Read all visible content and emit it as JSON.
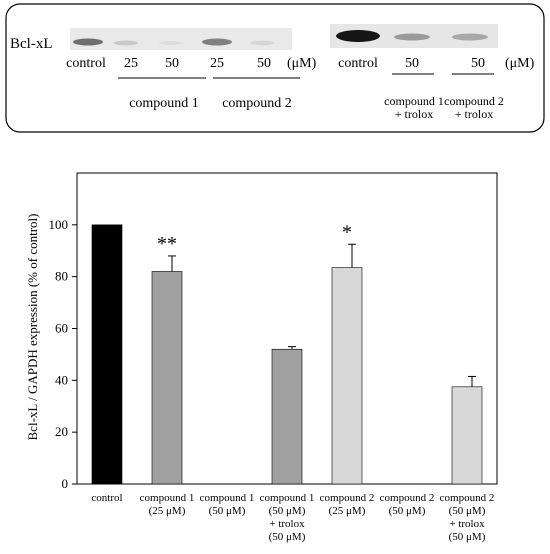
{
  "blot": {
    "protein_label": "Bcl-xL",
    "left_lanes": [
      "control",
      "25",
      "50",
      "25",
      "50"
    ],
    "left_unit": "(μM)",
    "left_groups": [
      "compound 1",
      "compound 2"
    ],
    "right_lanes": [
      "control",
      "50",
      "50"
    ],
    "right_unit": "(μM)",
    "right_groups": [
      [
        "compound 1",
        "+ trolox"
      ],
      [
        "compound 2",
        "+ trolox"
      ]
    ]
  },
  "chart_data": {
    "type": "bar",
    "ylabel": "Bcl-xL / GAPDH expression (% of control)",
    "ylim": [
      0,
      120
    ],
    "yticks": [
      "0",
      "20",
      "40",
      "60",
      "80",
      "100"
    ],
    "grid": false,
    "categories": [
      [
        "control"
      ],
      [
        "compound 1",
        "(25 μM)"
      ],
      [
        "compound 1",
        "(50 μM)"
      ],
      [
        "compound 1",
        "(50 μM)",
        "+ trolox",
        "(50 μM)"
      ],
      [
        "compound 2",
        "(25 μM)"
      ],
      [
        "compound 2",
        "(50 μM)"
      ],
      [
        "compound 2",
        "(50 μM)",
        "+ trolox",
        "(50 μM)"
      ]
    ],
    "values": [
      100,
      82,
      0,
      52,
      83.5,
      0,
      37.5
    ],
    "errors": [
      0,
      6,
      0,
      1,
      9,
      0,
      4
    ],
    "colors": [
      "#000000",
      "#a0a0a0",
      "#a0a0a0",
      "#a0a0a0",
      "#d8d8d8",
      "#d8d8d8",
      "#d8d8d8"
    ],
    "annotations": [
      "",
      "**",
      "",
      "",
      "*",
      "",
      ""
    ]
  }
}
